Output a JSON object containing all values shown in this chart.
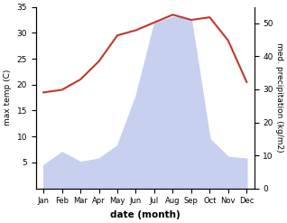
{
  "months": [
    "Jan",
    "Feb",
    "Mar",
    "Apr",
    "May",
    "Jun",
    "Jul",
    "Aug",
    "Sep",
    "Oct",
    "Nov",
    "Dec"
  ],
  "month_positions": [
    0,
    1,
    2,
    3,
    4,
    5,
    6,
    7,
    8,
    9,
    10,
    11
  ],
  "temperature": [
    18.5,
    19.0,
    21.0,
    24.5,
    29.5,
    30.5,
    32.0,
    33.5,
    32.5,
    33.0,
    28.5,
    20.5
  ],
  "precipitation": [
    7.0,
    11.0,
    8.0,
    9.0,
    13.0,
    28.0,
    50.0,
    52.0,
    51.0,
    15.0,
    9.5,
    9.0
  ],
  "temp_color": "#c0392b",
  "precip_fill_color": "#c8d0f0",
  "temp_ylim": [
    0,
    35
  ],
  "precip_ylim": [
    0,
    55
  ],
  "temp_yticks": [
    5,
    10,
    15,
    20,
    25,
    30,
    35
  ],
  "precip_yticks": [
    0,
    10,
    20,
    30,
    40,
    50
  ],
  "xlabel": "date (month)",
  "ylabel_left": "max temp (C)",
  "ylabel_right": "med. precipitation (kg/m2)",
  "figwidth": 3.18,
  "figheight": 2.47,
  "dpi": 100
}
